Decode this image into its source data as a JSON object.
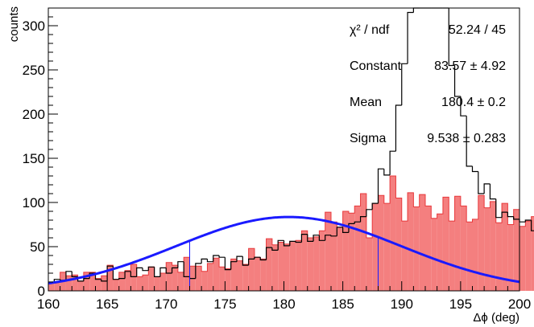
{
  "chart_data": {
    "type": "histogram",
    "xlabel": "Δϕ (deg)",
    "ylabel": "counts",
    "xlim": [
      160,
      200
    ],
    "ylim": [
      0,
      320
    ],
    "x_ticks": [
      "160",
      "165",
      "170",
      "175",
      "180",
      "185",
      "190",
      "195",
      "200"
    ],
    "y_ticks": [
      "0",
      "50",
      "100",
      "150",
      "200",
      "250",
      "300"
    ],
    "bin_width": 0.5,
    "grid": false,
    "colors": {
      "filled": "#f47f7f",
      "filled_edge": "#e8383b",
      "fit": "#1a1aff",
      "outline": "#000000"
    },
    "series": [
      {
        "style": "outline",
        "values": [
          10,
          13,
          12,
          22,
          16,
          11,
          14,
          20,
          13,
          11,
          28,
          13,
          14,
          22,
          16,
          26,
          23,
          27,
          16,
          26,
          20,
          26,
          33,
          16,
          14,
          31,
          36,
          33,
          40,
          38,
          24,
          33,
          39,
          29,
          36,
          38,
          35,
          49,
          46,
          57,
          51,
          56,
          55,
          64,
          56,
          63,
          57,
          63,
          62,
          72,
          66,
          76,
          78,
          84,
          92,
          99,
          138,
          131,
          158,
          210,
          257,
          315,
          320,
          320,
          320,
          320,
          320,
          320,
          255,
          220,
          198,
          141,
          135,
          110,
          121,
          104,
          83,
          89,
          84,
          81,
          78,
          80,
          68,
          72,
          60,
          58,
          50,
          47,
          72,
          70,
          66,
          62,
          55,
          50,
          51,
          45,
          43,
          46,
          39,
          32,
          36,
          29,
          38,
          31,
          34,
          28,
          33,
          22,
          20,
          25,
          27,
          21,
          13,
          16,
          22,
          20,
          13,
          17,
          12,
          10,
          12
        ]
      },
      {
        "style": "filled",
        "values": [
          9,
          10,
          21,
          17,
          18,
          11,
          21,
          21,
          14,
          17,
          29,
          13,
          21,
          23,
          30,
          16,
          18,
          27,
          16,
          20,
          32,
          29,
          21,
          38,
          28,
          28,
          22,
          31,
          37,
          27,
          25,
          36,
          34,
          30,
          48,
          38,
          36,
          59,
          52,
          55,
          53,
          56,
          57,
          68,
          60,
          61,
          68,
          89,
          78,
          72,
          90,
          88,
          96,
          110,
          60,
          99,
          108,
          99,
          130,
          105,
          79,
          111,
          95,
          109,
          96,
          82,
          87,
          106,
          79,
          107,
          96,
          78,
          81,
          108,
          94,
          101,
          77,
          99,
          75,
          92,
          73,
          79,
          84,
          55,
          66,
          57,
          69,
          55,
          44,
          40,
          55,
          50,
          59,
          49,
          46,
          42,
          25,
          54,
          21,
          46,
          43,
          31,
          33,
          32,
          34,
          25,
          28,
          42,
          26,
          34,
          31,
          27,
          18,
          16,
          13,
          11,
          9,
          17,
          12,
          9,
          11
        ]
      }
    ],
    "fit": {
      "function": "gaus",
      "constant": 83.57,
      "mean": 180.4,
      "sigma": 9.538,
      "range": [
        172,
        188
      ]
    },
    "stats_box": [
      {
        "label": "χ² / ndf",
        "value": "52.24 / 45"
      },
      {
        "label": "Constant",
        "value": "83.57 ± 4.92"
      },
      {
        "label": "Mean",
        "value": "180.4 ± 0.2"
      },
      {
        "label": "Sigma",
        "value": "9.538 ± 0.283"
      }
    ]
  }
}
